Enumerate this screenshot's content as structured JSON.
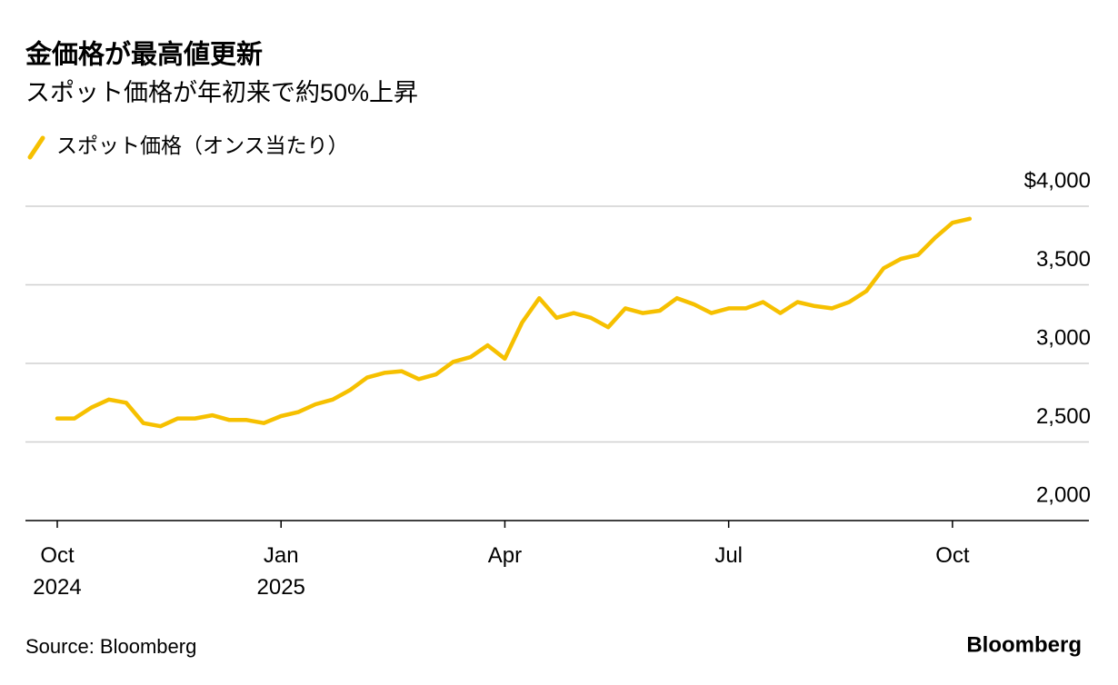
{
  "chart_data": {
    "type": "line",
    "title": "金価格が最高値更新",
    "subtitle": "スポット価格が年初来で約50%上昇",
    "source": "Source: Bloomberg",
    "logo": "Bloomberg",
    "categories": [
      "Oct 2024",
      null,
      null,
      null,
      null,
      null,
      null,
      null,
      null,
      null,
      null,
      null,
      null,
      "Jan 2025",
      null,
      null,
      null,
      null,
      null,
      null,
      null,
      null,
      null,
      null,
      null,
      null,
      "Apr",
      null,
      null,
      null,
      null,
      null,
      null,
      null,
      null,
      null,
      null,
      null,
      null,
      "Jul",
      null,
      null,
      null,
      null,
      null,
      null,
      null,
      null,
      null,
      null,
      null,
      null,
      "Oct",
      null
    ],
    "series": [
      {
        "name": "スポット価格（オンス当たり）",
        "color": "#f6c000",
        "values": [
          2650,
          2650,
          2720,
          2770,
          2750,
          2620,
          2600,
          2650,
          2650,
          2670,
          2640,
          2640,
          2620,
          2665,
          2690,
          2740,
          2770,
          2830,
          2910,
          2940,
          2950,
          2900,
          2930,
          3010,
          3040,
          3115,
          3030,
          3260,
          3415,
          3290,
          3320,
          3290,
          3230,
          3350,
          3320,
          3335,
          3415,
          3375,
          3320,
          3350,
          3350,
          3390,
          3320,
          3390,
          3365,
          3350,
          3390,
          3460,
          3605,
          3665,
          3690,
          3800,
          3895,
          3920
        ]
      }
    ],
    "ylim": [
      2000,
      4000
    ],
    "yticks": [
      {
        "value": 2000,
        "label": "2,000"
      },
      {
        "value": 2500,
        "label": "2,500"
      },
      {
        "value": 3000,
        "label": "3,000"
      },
      {
        "value": 3500,
        "label": "3,500"
      },
      {
        "value": 4000,
        "label": "$4,000"
      }
    ],
    "grid": true
  }
}
